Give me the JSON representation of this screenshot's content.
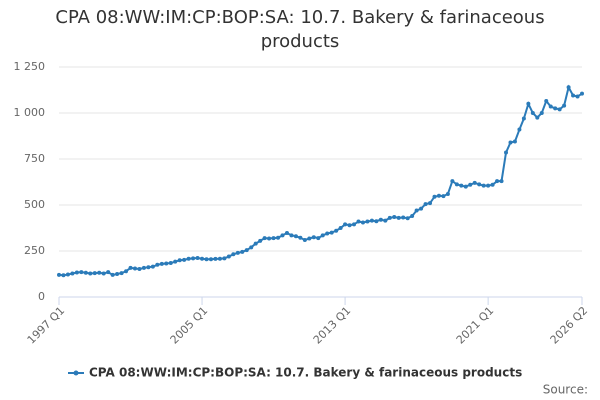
{
  "chart_data": {
    "type": "line",
    "title": "CPA 08:WW:IM:CP:BOP:SA: 10.7. Bakery & farinaceous products",
    "source": "Source:",
    "categories": [
      "1997 Q1",
      null,
      null,
      null,
      null,
      null,
      null,
      null,
      null,
      null,
      null,
      null,
      null,
      null,
      null,
      null,
      null,
      null,
      null,
      null,
      null,
      null,
      null,
      null,
      null,
      null,
      null,
      null,
      null,
      null,
      null,
      null,
      "2005 Q1",
      null,
      null,
      null,
      null,
      null,
      null,
      null,
      null,
      null,
      null,
      null,
      null,
      null,
      null,
      null,
      null,
      null,
      null,
      null,
      null,
      null,
      null,
      null,
      null,
      null,
      null,
      null,
      null,
      null,
      null,
      null,
      "2013 Q1",
      null,
      null,
      null,
      null,
      null,
      null,
      null,
      null,
      null,
      null,
      null,
      null,
      null,
      null,
      null,
      null,
      null,
      null,
      null,
      null,
      null,
      null,
      null,
      null,
      null,
      null,
      null,
      null,
      null,
      null,
      null,
      "2021 Q1",
      null,
      null,
      null,
      null,
      null,
      null,
      null,
      null,
      null,
      null,
      null,
      null,
      null,
      null,
      null,
      null,
      null,
      null,
      null,
      null,
      "2026 Q2"
    ],
    "series": [
      {
        "name": "CPA 08:WW:IM:CP:BOP:SA: 10.7. Bakery & farinaceous products",
        "color": "#2b7bb9",
        "values": [
          120,
          118,
          122,
          128,
          133,
          135,
          132,
          128,
          130,
          132,
          128,
          135,
          120,
          125,
          130,
          140,
          158,
          155,
          152,
          158,
          162,
          165,
          175,
          180,
          182,
          185,
          192,
          200,
          202,
          208,
          210,
          212,
          208,
          205,
          205,
          207,
          208,
          210,
          220,
          232,
          240,
          245,
          255,
          270,
          290,
          305,
          320,
          318,
          320,
          322,
          335,
          348,
          335,
          330,
          322,
          310,
          318,
          325,
          320,
          335,
          345,
          350,
          360,
          375,
          395,
          390,
          395,
          410,
          405,
          410,
          415,
          412,
          420,
          415,
          430,
          435,
          430,
          432,
          428,
          440,
          470,
          480,
          505,
          510,
          545,
          550,
          548,
          560,
          630,
          612,
          605,
          600,
          610,
          620,
          612,
          605,
          605,
          610,
          630,
          630,
          785,
          840,
          845,
          910,
          970,
          1050,
          1000,
          975,
          1000,
          1065,
          1035,
          1025,
          1020,
          1040,
          1140,
          1095,
          1090,
          1105
        ]
      }
    ],
    "ylim": [
      0,
      1250
    ],
    "yticks": [
      0,
      250,
      500,
      750,
      {
        "value": 1000,
        "label": "1 000"
      },
      {
        "value": 1250,
        "label": "1 250"
      }
    ],
    "grid": true
  }
}
